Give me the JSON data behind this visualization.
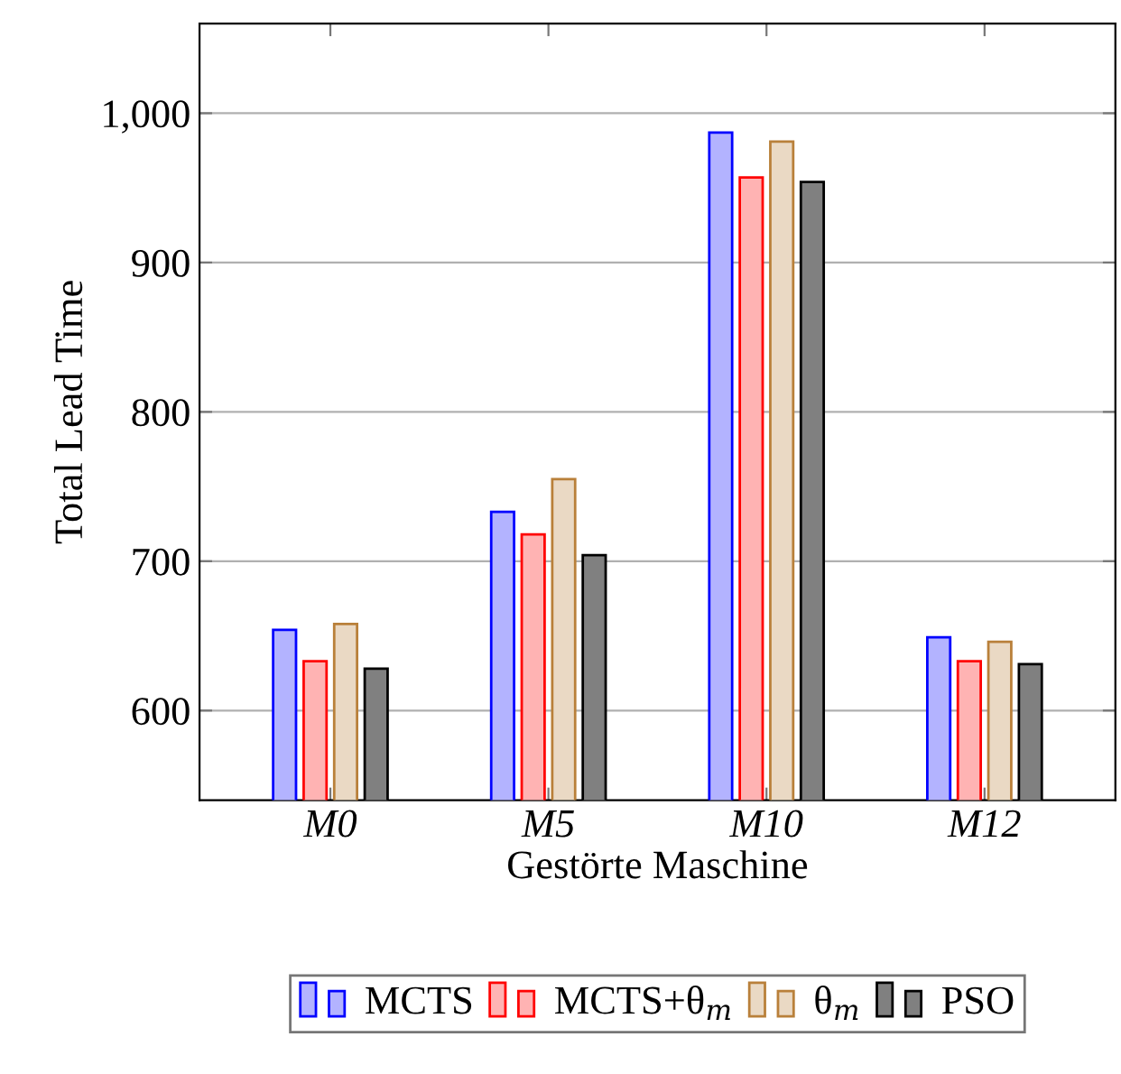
{
  "chart_data": {
    "type": "bar",
    "xlabel": "Gestörte Maschine",
    "ylabel": "Total Lead Time",
    "categories": [
      "M0",
      "M5",
      "M10",
      "M12"
    ],
    "series": [
      {
        "name": "MCTS",
        "color": "#b3b3ff",
        "values": [
          654,
          733,
          987,
          649
        ]
      },
      {
        "name": "MCTS+θ$_{m}$",
        "color": "#ffb3b3",
        "values": [
          633,
          718,
          957,
          633
        ]
      },
      {
        "name": "θ$_{m}$",
        "color": "#ead9c4",
        "values": [
          658,
          755,
          981,
          646
        ]
      },
      {
        "name": "PSO",
        "color": "#808080",
        "values": [
          628,
          704,
          954,
          631
        ]
      }
    ],
    "ylim": [
      540,
      1060
    ],
    "yticks": [
      {
        "value": 600,
        "label": "600"
      },
      {
        "value": 700,
        "label": "700"
      },
      {
        "value": 800,
        "label": "800"
      },
      {
        "value": 900,
        "label": "900"
      },
      {
        "value": 1000,
        "label": "1,000"
      }
    ],
    "grid": "y",
    "legend": "bottom"
  }
}
